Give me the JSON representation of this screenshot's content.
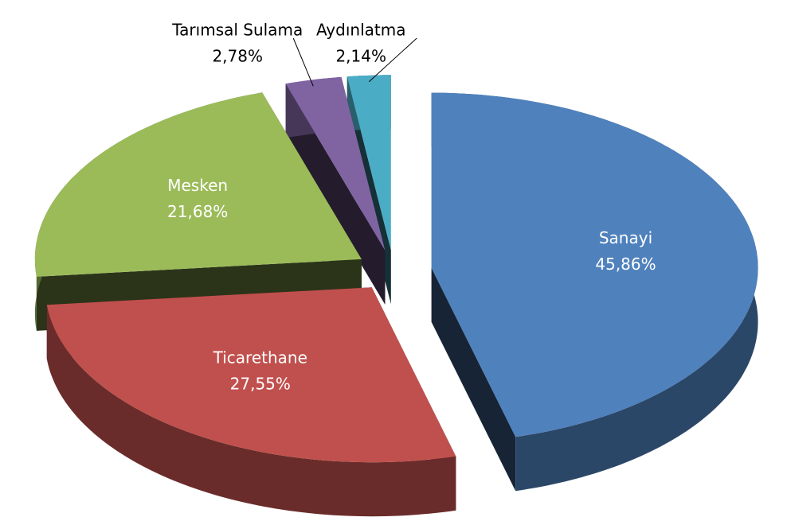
{
  "chart_data": {
    "type": "pie",
    "categories": [
      "Sanayi",
      "Ticarethane",
      "Mesken",
      "Tarımsal Sulama",
      "Aydınlatma"
    ],
    "values": [
      45.86,
      27.55,
      21.68,
      2.78,
      2.14
    ],
    "value_labels": [
      "45,86%",
      "27,55%",
      "21,68%",
      "2,78%",
      "2,14%"
    ],
    "colors": [
      "#4f81bd",
      "#c0504d",
      "#9bbb59",
      "#8064a2",
      "#4bacc6"
    ]
  }
}
